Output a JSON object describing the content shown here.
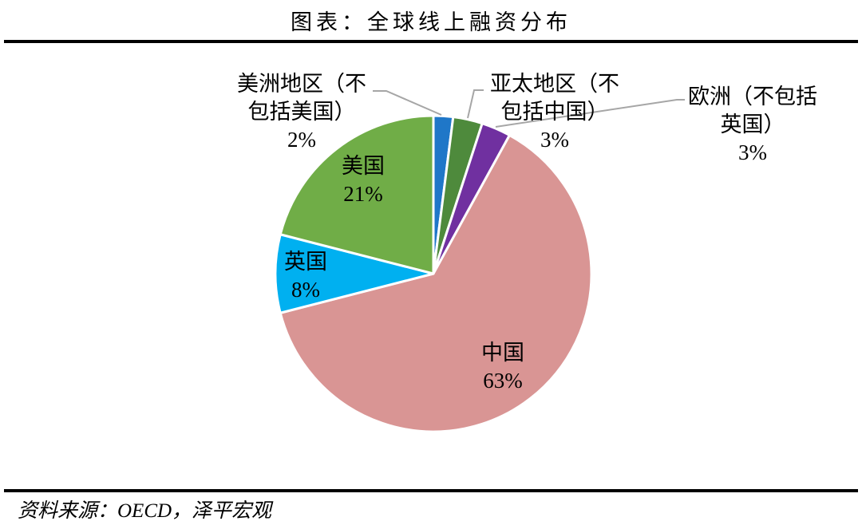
{
  "chart_data": {
    "type": "pie",
    "title": "图表：全球线上融资分布",
    "categories": [
      "美洲地区（不包括美国）",
      "亚太地区（不包括中国）",
      "欧洲（不包括英国）",
      "中国",
      "英国",
      "美国"
    ],
    "values": [
      2,
      3,
      3,
      63,
      8,
      21
    ],
    "data_labels": [
      "2%",
      "3%",
      "3%",
      "63%",
      "8%",
      "21%"
    ],
    "colors": [
      "#1f77c8",
      "#4e8a3c",
      "#7030a0",
      "#d99594",
      "#00b0f0",
      "#70ad47"
    ]
  },
  "source": "资料来源：OECD，泽平宏观"
}
